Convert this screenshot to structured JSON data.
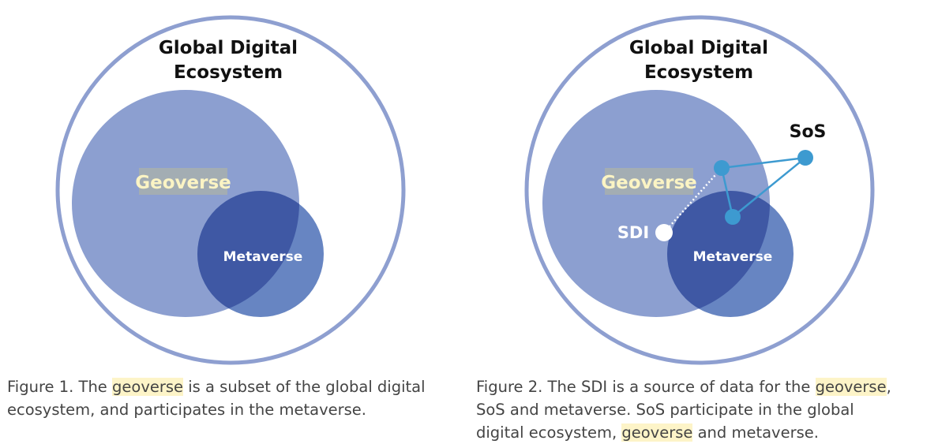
{
  "colors": {
    "outer_ring": "#8e9fd0",
    "geoverse_fill": "#8c9fd0",
    "metaverse_fill": "#6785c2",
    "overlap_fill": "#3f58a4",
    "geoverse_label": "#fbf4c4",
    "geoverse_label_bg": "#a3adb3",
    "sos_network": "#3d9ad0",
    "sdi_node": "#ffffff",
    "highlight": "#fdf4c8",
    "caption_text": "#444444"
  },
  "figure1": {
    "title_line1": "Global Digital",
    "title_line2": "Ecosystem",
    "geoverse_label": "Geoverse",
    "metaverse_label": "Metaverse",
    "caption_part1": "Figure 1. The ",
    "caption_highlight": "geoverse",
    "caption_part2": " is a subset of the global digital ecosystem, and participates in the metaverse."
  },
  "figure2": {
    "title_line1": "Global Digital",
    "title_line2": "Ecosystem",
    "geoverse_label": "Geoverse",
    "metaverse_label": "Metaverse",
    "sdi_label": "SDI",
    "sos_label": "SoS",
    "caption_part1": "Figure 2. The SDI is a source of data for the ",
    "caption_highlight1": "geoverse",
    "caption_part2": ", SoS and metaverse. SoS participate in the global digital ecosystem, ",
    "caption_highlight2": "geoverse",
    "caption_part3": " and metaverse."
  }
}
